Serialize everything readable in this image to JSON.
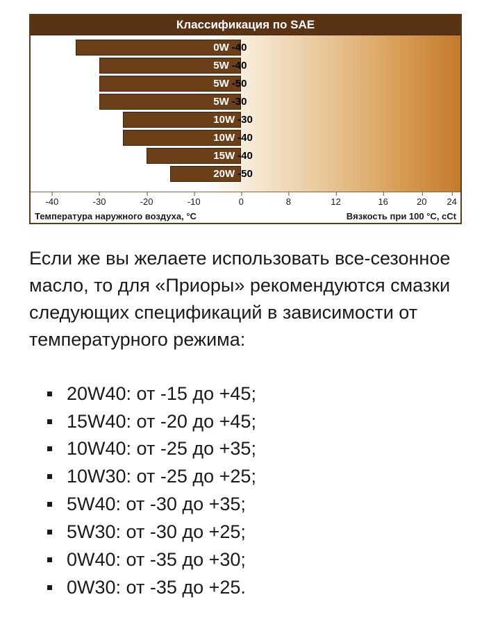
{
  "chart": {
    "title": "Классификация по SAE",
    "axis_left_label": "Температура наружного воздуха, °C",
    "axis_right_label": "Вязкость при 100 °C, cCt",
    "ticks": [
      {
        "label": "-40",
        "pos_pct": 5
      },
      {
        "label": "-30",
        "pos_pct": 16
      },
      {
        "label": "-20",
        "pos_pct": 27
      },
      {
        "label": "-10",
        "pos_pct": 38
      },
      {
        "label": "0",
        "pos_pct": 49
      },
      {
        "label": "8",
        "pos_pct": 60
      },
      {
        "label": "12",
        "pos_pct": 71
      },
      {
        "label": "16",
        "pos_pct": 82
      },
      {
        "label": "20",
        "pos_pct": 91
      },
      {
        "label": "24",
        "pos_pct": 98
      }
    ],
    "bars": [
      {
        "w": "0W",
        "v": "-40",
        "left_pct": 10.5,
        "right_pct": 49
      },
      {
        "w": "5W",
        "v": "-40",
        "left_pct": 16,
        "right_pct": 49
      },
      {
        "w": "5W",
        "v": "-50",
        "left_pct": 16,
        "right_pct": 49
      },
      {
        "w": "5W",
        "v": "-30",
        "left_pct": 16,
        "right_pct": 49
      },
      {
        "w": "10W",
        "v": "-30",
        "left_pct": 21.5,
        "right_pct": 49
      },
      {
        "w": "10W",
        "v": "-40",
        "left_pct": 21.5,
        "right_pct": 49
      },
      {
        "w": "15W",
        "v": "-40",
        "left_pct": 27,
        "right_pct": 49
      },
      {
        "w": "20W",
        "v": "-50",
        "left_pct": 32.5,
        "right_pct": 49
      }
    ],
    "title_bg": "#5a3315",
    "bar_color": "#6b3f18",
    "bar_border": "#3a220c",
    "label_w_color": "#ffffff",
    "label_v_color": "#000000"
  },
  "intro": "Если же вы желаете использовать все-сезонное масло, то для «Приоры» рекомендуются смазки следующих спецификаций в зависимости от температурного режима:",
  "specs": [
    "20W40: от -15 до +45;",
    "15W40: от -20 до +45;",
    "10W40: от -25 до +35;",
    "10W30: от -25 до +25;",
    "5W40: от -30 до +35;",
    "5W30: от -30 до +25;",
    "0W40: от -35 до +30;",
    "0W30: от -35 до +25."
  ]
}
